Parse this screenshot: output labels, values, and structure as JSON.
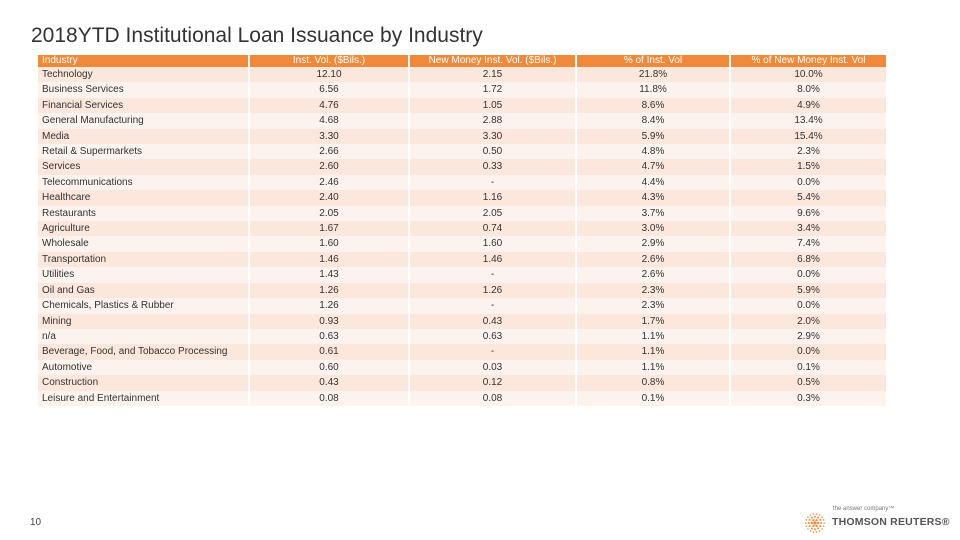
{
  "title": "2018YTD Institutional Loan Issuance by Industry",
  "page_number": "10",
  "colors": {
    "header": "#f08a3a",
    "row_odd": "#fce7dc",
    "row_even": "#fdf3ee",
    "logo": "#f08a3a"
  },
  "logo": {
    "tagline": "the answer company™",
    "name": "THOMSON REUTERS®",
    "icon": "thomson-reuters-dot-logo"
  },
  "table": {
    "headers": [
      "Industry",
      "Inst. Vol. ($Bils.)",
      "New Money Inst. Vol. ($Bils.)",
      "% of Inst. Vol",
      "% of New Money Inst. Vol"
    ],
    "rows": [
      [
        "Technology",
        "12.10",
        "2.15",
        "21.8%",
        "10.0%"
      ],
      [
        "Business Services",
        "6.56",
        "1.72",
        "11.8%",
        "8.0%"
      ],
      [
        "Financial Services",
        "4.76",
        "1.05",
        "8.6%",
        "4.9%"
      ],
      [
        "General Manufacturing",
        "4.68",
        "2.88",
        "8.4%",
        "13.4%"
      ],
      [
        "Media",
        "3.30",
        "3.30",
        "5.9%",
        "15.4%"
      ],
      [
        "Retail & Supermarkets",
        "2.66",
        "0.50",
        "4.8%",
        "2.3%"
      ],
      [
        "Services",
        "2.60",
        "0.33",
        "4.7%",
        "1.5%"
      ],
      [
        "Telecommunications",
        "2.46",
        "-",
        "4.4%",
        "0.0%"
      ],
      [
        "Healthcare",
        "2.40",
        "1.16",
        "4.3%",
        "5.4%"
      ],
      [
        "Restaurants",
        "2.05",
        "2.05",
        "3.7%",
        "9.6%"
      ],
      [
        "Agriculture",
        "1.67",
        "0.74",
        "3.0%",
        "3.4%"
      ],
      [
        "Wholesale",
        "1.60",
        "1.60",
        "2.9%",
        "7.4%"
      ],
      [
        "Transportation",
        "1.46",
        "1.46",
        "2.6%",
        "6.8%"
      ],
      [
        "Utilities",
        "1.43",
        "-",
        "2.6%",
        "0.0%"
      ],
      [
        "Oil and Gas",
        "1.26",
        "1.26",
        "2.3%",
        "5.9%"
      ],
      [
        "Chemicals, Plastics & Rubber",
        "1.26",
        "-",
        "2.3%",
        "0.0%"
      ],
      [
        "Mining",
        "0.93",
        "0.43",
        "1.7%",
        "2.0%"
      ],
      [
        "n/a",
        "0.63",
        "0.63",
        "1.1%",
        "2.9%"
      ],
      [
        "Beverage, Food, and Tobacco Processing",
        "0.61",
        "-",
        "1.1%",
        "0.0%"
      ],
      [
        "Automotive",
        "0.60",
        "0.03",
        "1.1%",
        "0.1%"
      ],
      [
        "Construction",
        "0.43",
        "0.12",
        "0.8%",
        "0.5%"
      ],
      [
        "Leisure and Entertainment",
        "0.08",
        "0.08",
        "0.1%",
        "0.3%"
      ]
    ]
  }
}
